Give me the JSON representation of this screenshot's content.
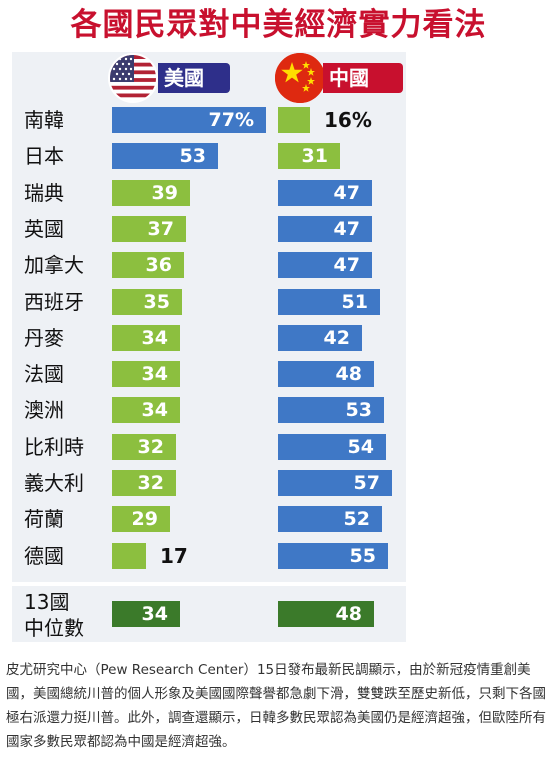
{
  "title": "各國民眾對中美經濟實力看法",
  "colors": {
    "title": "#c8102e",
    "us_pill": "#2e2f8a",
    "cn_pill": "#c8102e",
    "blue_bar": "#3f78c6",
    "green_bar": "#8cbf3f",
    "median_bar": "#3b7a2a",
    "panel": "#eef1f5"
  },
  "icons": {
    "us": "us-flag-icon",
    "cn": "china-flag-icon"
  },
  "chart_data": {
    "type": "bar",
    "title": "各國民眾對中美經濟實力看法",
    "categories": [
      "南韓",
      "日本",
      "瑞典",
      "英國",
      "加拿大",
      "西班牙",
      "丹麥",
      "法國",
      "澳洲",
      "比利時",
      "義大利",
      "荷蘭",
      "德國"
    ],
    "series": [
      {
        "name": "美國",
        "values": [
          77,
          53,
          39,
          37,
          36,
          35,
          34,
          34,
          34,
          32,
          32,
          29,
          17
        ],
        "labels": [
          "77%",
          "53",
          "39",
          "37",
          "36",
          "35",
          "34",
          "34",
          "34",
          "32",
          "32",
          "29",
          "17"
        ]
      },
      {
        "name": "中國",
        "values": [
          16,
          31,
          47,
          47,
          47,
          51,
          42,
          48,
          53,
          54,
          57,
          52,
          55
        ],
        "labels": [
          "16%",
          "31",
          "47",
          "47",
          "47",
          "51",
          "42",
          "48",
          "53",
          "54",
          "57",
          "52",
          "55"
        ]
      }
    ],
    "median": {
      "label_line1": "13國",
      "label_line2": "中位數",
      "values": [
        34,
        48
      ]
    },
    "legend_position": "top",
    "grid": false
  },
  "caption": "皮尤研究中心（Pew Research Center）15日發布最新民調顯示，由於新冠疫情重創美國，美國總統川普的個人形象及美國國際聲譽都急劇下滑，雙雙跌至歷史新低，只剩下各國極右派還力挺川普。此外，調查還顯示，日韓多數民眾認為美國仍是經濟超強，但歐陸所有國家多數民眾都認為中國是經濟超強。"
}
